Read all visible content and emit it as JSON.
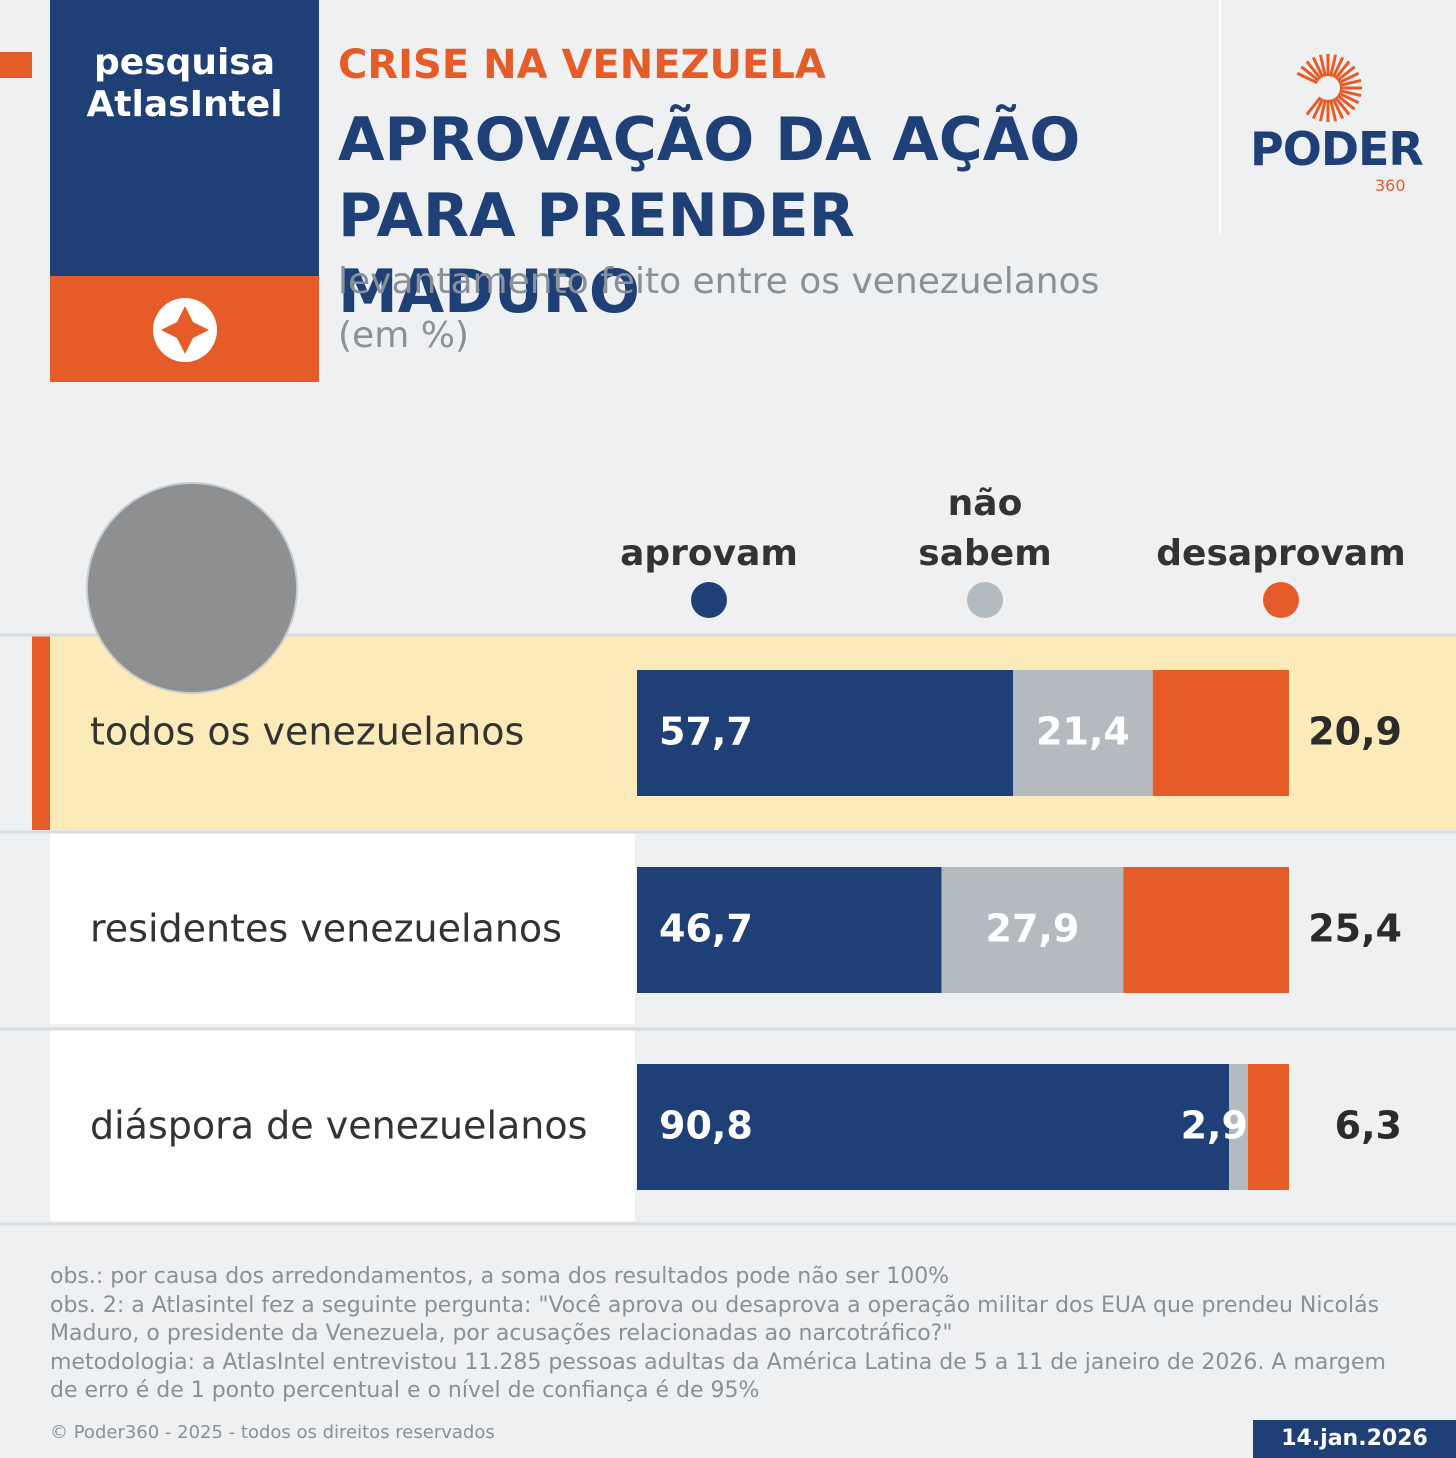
{
  "header": {
    "badge": "pesquisa AtlasIntel",
    "kicker": "CRISE NA VENEZUELA",
    "logo": "PODER",
    "logo_sub": "360"
  },
  "chart_data": {
    "type": "bar",
    "orientation": "horizontal",
    "stacked": true,
    "title": "APROVAÇÃO DA AÇÃO PARA PRENDER MADURO",
    "subtitle": "levantamento feito entre os venezuelanos (em %)",
    "categories": [
      "todos os venezuelanos",
      "residentes venezuelanos",
      "diáspora de venezuelanos"
    ],
    "xlim": [
      0,
      100
    ],
    "series": [
      {
        "name": "aprovam",
        "color": "#1f3f77",
        "values": [
          57.7,
          46.7,
          90.8
        ],
        "value_labels": [
          "57,7",
          "46,7",
          "90,8"
        ]
      },
      {
        "name": "não sabem",
        "color": "#b3bac0",
        "values": [
          21.4,
          27.9,
          2.9
        ],
        "value_labels": [
          "21,4",
          "27,9",
          "2,9"
        ]
      },
      {
        "name": "desaprovam",
        "color": "#e65c28",
        "values": [
          20.9,
          25.4,
          6.3
        ],
        "value_labels": [
          "20,9",
          "25,4",
          "6,3"
        ]
      }
    ]
  },
  "notes": [
    "obs.: por causa dos arredondamentos, a soma dos resultados pode não ser 100%",
    "obs. 2: a Atlasintel fez a seguinte pergunta: \"Você aprova ou desaprova a operação militar dos EUA que prendeu Nicolás Maduro, o presidente da Venezuela, por acusações relacionadas ao narcotráfico?\"",
    "metodologia: a AtlasIntel entrevistou 11.285 pessoas adultas da América Latina de 5 a 11 de janeiro de 2026. A margem de erro é de 1 ponto percentual e o nível de confiança é de 95%"
  ],
  "copyright": "© Poder360 - 2025 - todos os direitos reservados",
  "date": "14.jan.2026"
}
